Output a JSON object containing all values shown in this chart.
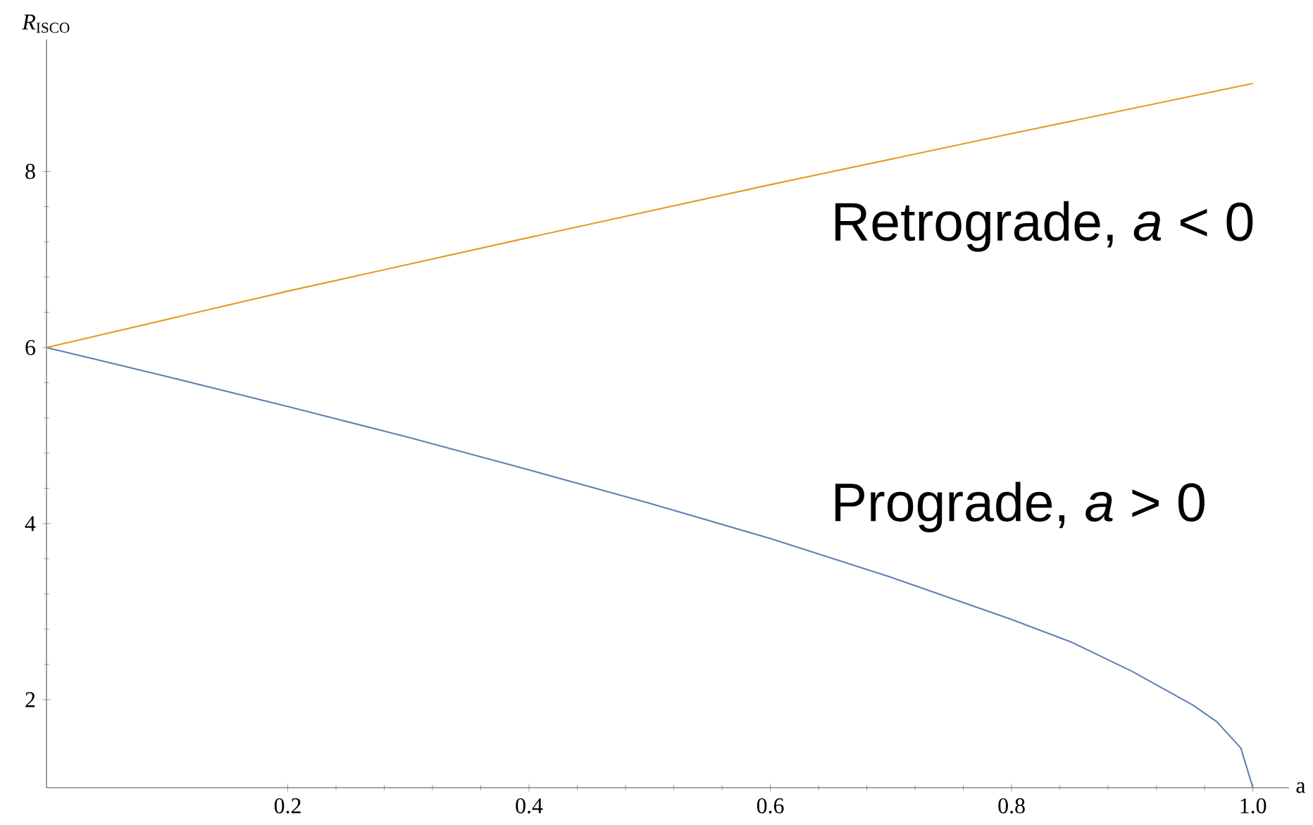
{
  "chart_data": {
    "type": "line",
    "xlabel": "a",
    "ylabel": "*R*$_{ISCO}$",
    "xlim": [
      0,
      1.03
    ],
    "ylim": [
      1,
      9.5
    ],
    "xticks": [
      0.2,
      0.4,
      0.6,
      0.8,
      {
        "value": 1.0,
        "label": "1.0"
      }
    ],
    "yticks": [
      2,
      4,
      6,
      8
    ],
    "grid": false,
    "marker": "none",
    "line_style": "solid",
    "series": [
      {
        "color": "#5e81b5",
        "x": [
          0,
          0.1,
          0.2,
          0.3,
          0.4,
          0.5,
          0.6,
          0.7,
          0.8,
          0.85,
          0.9,
          0.95,
          0.97,
          0.99,
          1.0
        ],
        "values": [
          6,
          5.67,
          5.33,
          4.98,
          4.61,
          4.23,
          3.83,
          3.39,
          2.91,
          2.65,
          2.32,
          1.94,
          1.75,
          1.45,
          1.0
        ]
      },
      {
        "color": "#e19c24",
        "x": [
          0,
          0.2,
          0.4,
          0.6,
          0.8,
          1.0
        ],
        "values": [
          6,
          6.64,
          7.25,
          7.85,
          8.43,
          9
        ]
      }
    ],
    "annotations": [
      "Retrograde, *a* < 0",
      "Prograde, *a* > 0"
    ]
  }
}
